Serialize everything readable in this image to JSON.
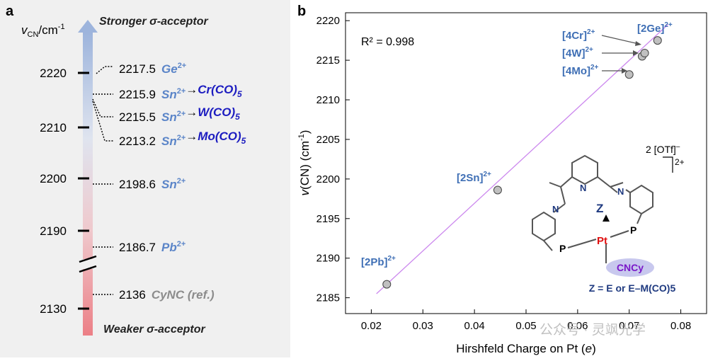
{
  "panel_a": {
    "label": "a",
    "axis_label_main": "v",
    "axis_label_sub": "CN",
    "axis_label_unit": "/cm",
    "axis_label_sup": "-1",
    "top_label": "Stronger σ-acceptor",
    "bottom_label": "Weaker σ-acceptor",
    "ticks": [
      "2220",
      "2210",
      "2200",
      "2190",
      "2130"
    ],
    "entries": [
      {
        "value": "2217.5",
        "species": "Ge",
        "charge": "2+",
        "arrow": "",
        "metal": "",
        "sub": ""
      },
      {
        "value": "2215.9",
        "species": "Sn",
        "charge": "2+",
        "arrow": "→",
        "metal": "Cr(CO)",
        "sub": "5"
      },
      {
        "value": "2215.5",
        "species": "Sn",
        "charge": "2+",
        "arrow": "→",
        "metal": "W(CO)",
        "sub": "5"
      },
      {
        "value": "2213.2",
        "species": "Sn",
        "charge": "2+",
        "arrow": "→",
        "metal": "Mo(CO)",
        "sub": "5"
      },
      {
        "value": "2198.6",
        "species": "Sn",
        "charge": "2+",
        "arrow": "",
        "metal": "",
        "sub": ""
      },
      {
        "value": "2186.7",
        "species": "Pb",
        "charge": "2+",
        "arrow": "",
        "metal": "",
        "sub": ""
      },
      {
        "value": "2136",
        "species": "CyNC (ref.)",
        "charge": "",
        "arrow": "",
        "metal": "",
        "sub": ""
      }
    ]
  },
  "panel_b": {
    "label": "b",
    "r_squared": "R² = 0.998",
    "point_labels": [
      {
        "text": "[2Pb]",
        "sup": "2+"
      },
      {
        "text": "[2Sn]",
        "sup": "2+"
      },
      {
        "text": "[4Mo]",
        "sup": "2+"
      },
      {
        "text": "[4W]",
        "sup": "2+"
      },
      {
        "text": "[4Cr]",
        "sup": "2+"
      },
      {
        "text": "[2Ge]",
        "sup": "2+"
      }
    ],
    "structure": {
      "counterion": "2 [OTf]",
      "counterion_sup": "–",
      "charge": "2+",
      "n_label": "N",
      "z_label": "Z",
      "pt_label": "Pt",
      "p_label": "P",
      "ligand_label": "CNCy",
      "z_definition": "Z = E or E–M(CO)5"
    },
    "watermark": "公众号 · 灵飒光学"
  },
  "chart_data": {
    "type": "scatter",
    "xlabel": "Hirshfeld Charge on Pt (e)",
    "ylabel": "v(CN) (cm-1)",
    "xlim": [
      0.015,
      0.085
    ],
    "ylim": [
      2183,
      2221
    ],
    "xticks": [
      "0.02",
      "0.03",
      "0.04",
      "0.05",
      "0.06",
      "0.07",
      "0.08"
    ],
    "yticks": [
      "2185",
      "2190",
      "2195",
      "2200",
      "2205",
      "2210",
      "2215",
      "2220"
    ],
    "points": [
      {
        "label": "[2Pb]2+",
        "x": 0.023,
        "y": 2186.7
      },
      {
        "label": "[2Sn]2+",
        "x": 0.0445,
        "y": 2198.6
      },
      {
        "label": "[4Mo]2+",
        "x": 0.07,
        "y": 2213.2
      },
      {
        "label": "[4W]2+",
        "x": 0.0725,
        "y": 2215.5
      },
      {
        "label": "[4Cr]2+",
        "x": 0.073,
        "y": 2215.9
      },
      {
        "label": "[2Ge]2+",
        "x": 0.0755,
        "y": 2217.5
      }
    ],
    "fit_line": {
      "x": [
        0.021,
        0.0775
      ],
      "y": [
        2185.5,
        2219.5
      ]
    },
    "fit_color": "#cc88ee",
    "point_color": "#c0c0c0",
    "label_color": "#3f6fb5",
    "grid": false
  },
  "colors": {
    "light_blue": "#5b85c8",
    "dark_blue": "#1c1cc0",
    "grey": "#8c8c8c",
    "navy": "#1f3a80"
  }
}
